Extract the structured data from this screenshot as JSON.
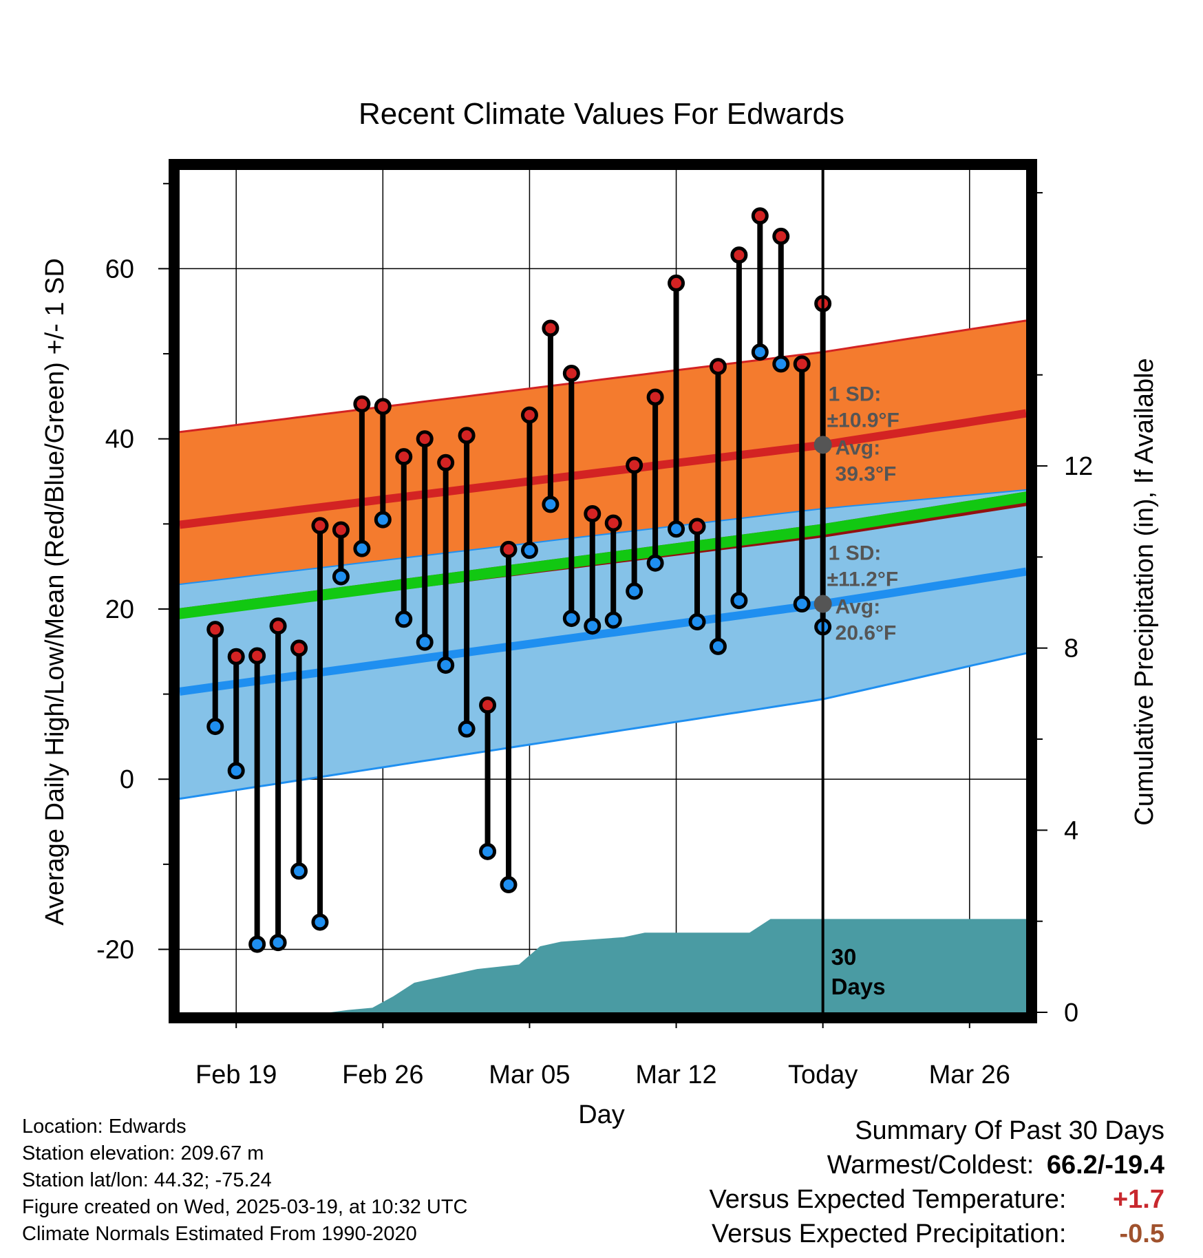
{
  "chart_data": {
    "type": "line",
    "title": "Recent Climate Values For Edwards",
    "xlabel": "Day",
    "ylabel": "Average Daily High/Low/Mean (Red/Blue/Green) +/- 1 SD",
    "y2label": "Cumulative Precipitation (in), If Available",
    "x_tick_labels": [
      "Feb 19",
      "Feb 26",
      "Mar 05",
      "Mar 12",
      "Today",
      "Mar 26"
    ],
    "x_tick_day_index": [
      1,
      8,
      15,
      22,
      29,
      36
    ],
    "xlim_day_index": [
      -1.7,
      38.7
    ],
    "ylim": [
      -27.4,
      71.6
    ],
    "y_ticks": [
      -20,
      0,
      20,
      40,
      60
    ],
    "y2lim": [
      0,
      18.5
    ],
    "y2_ticks": [
      0,
      4,
      8,
      12
    ],
    "grid": true,
    "daily_observations": {
      "day_index": [
        0,
        1,
        2,
        3,
        4,
        5,
        6,
        7,
        8,
        9,
        10,
        11,
        12,
        13,
        14,
        15,
        16,
        17,
        18,
        19,
        20,
        21,
        22,
        23,
        24,
        25,
        26,
        27,
        28
      ],
      "high": [
        17.6,
        14.4,
        14.5,
        18.0,
        15.4,
        29.8,
        29.3,
        44.1,
        43.8,
        37.9,
        40.0,
        37.2,
        40.4,
        8.7,
        27.0,
        42.8,
        53.0,
        47.7,
        31.2,
        30.1,
        36.9,
        44.9,
        58.3,
        29.7,
        48.5,
        61.6,
        66.2,
        63.8,
        48.8
      ],
      "low": [
        6.2,
        1.0,
        -19.4,
        -19.2,
        -10.8,
        -16.8,
        23.8,
        27.1,
        30.5,
        18.8,
        16.1,
        13.4,
        5.9,
        -8.5,
        -12.4,
        26.9,
        32.3,
        18.9,
        18.0,
        18.7,
        22.1,
        25.4,
        29.4,
        18.5,
        15.6,
        21.0,
        50.2,
        48.8,
        20.6
      ],
      "extra_day_index": 29,
      "extra_high": 55.9,
      "extra_low": 17.9
    },
    "normal_high": {
      "day_index": [
        -1.7,
        29,
        38.7
      ],
      "avg": [
        29.9,
        39.3,
        43.0
      ],
      "sd": [
        10.9,
        10.9,
        10.9
      ]
    },
    "normal_low": {
      "day_index": [
        -1.7,
        29,
        38.7
      ],
      "avg": [
        10.3,
        20.6,
        24.4
      ],
      "sd": [
        12.6,
        11.2,
        9.6
      ]
    },
    "normal_mean": {
      "day_index": [
        -1.7,
        29,
        38.7
      ],
      "avg": [
        20.1,
        30.0,
        33.8
      ]
    },
    "cumulative_precip": {
      "day_index": [
        -1.7,
        5.5,
        6.3,
        7.5,
        8.5,
        9.5,
        10.5,
        11.5,
        12.5,
        14.5,
        15.5,
        16.5,
        19.5,
        20.5,
        23.5,
        25.5,
        26.5,
        38.7
      ],
      "inches": [
        0,
        0,
        0.05,
        0.1,
        0.35,
        0.65,
        0.75,
        0.85,
        0.95,
        1.05,
        1.45,
        1.55,
        1.65,
        1.75,
        1.75,
        1.75,
        2.05,
        2.05
      ]
    },
    "today_annotations": {
      "high_sd": "1 SD:",
      "high_sd_val": "±10.9°F",
      "high_avg": "Avg:",
      "high_avg_val": "39.3°F",
      "low_sd": "1 SD:",
      "low_sd_val": "±11.2°F",
      "low_avg": "Avg:",
      "low_avg_val": "20.6°F",
      "period_num": "30",
      "period_unit": "Days"
    },
    "colors": {
      "high_band": "#f47b2e",
      "high_line": "#d32323",
      "low_band": "#85c2e8",
      "low_line": "#1f8ff0",
      "mean_band": "#12c812",
      "overlap_band": "#921010",
      "precip_fill": "#4a9ba3",
      "high_marker": "#d32323",
      "low_marker": "#1f8ff0"
    }
  },
  "footer": {
    "location": "Location: Edwards",
    "elevation": "Station elevation: 209.67 m",
    "latlon": "Station lat/lon: 44.32; -75.24",
    "created": "Figure created on Wed, 2025-03-19, at 10:32 UTC",
    "normals": "Climate Normals Estimated From 1990-2020"
  },
  "summary": {
    "heading": "Summary Of Past 30 Days",
    "warmest_label": "Warmest/Coldest:",
    "warmest_value": "66.2/-19.4",
    "temp_label": "Versus Expected Temperature:",
    "temp_value": "+1.7",
    "temp_color": "#c8282e",
    "precip_label": "Versus Expected Precipitation:",
    "precip_value": "-0.5",
    "precip_color": "#a0522d"
  }
}
